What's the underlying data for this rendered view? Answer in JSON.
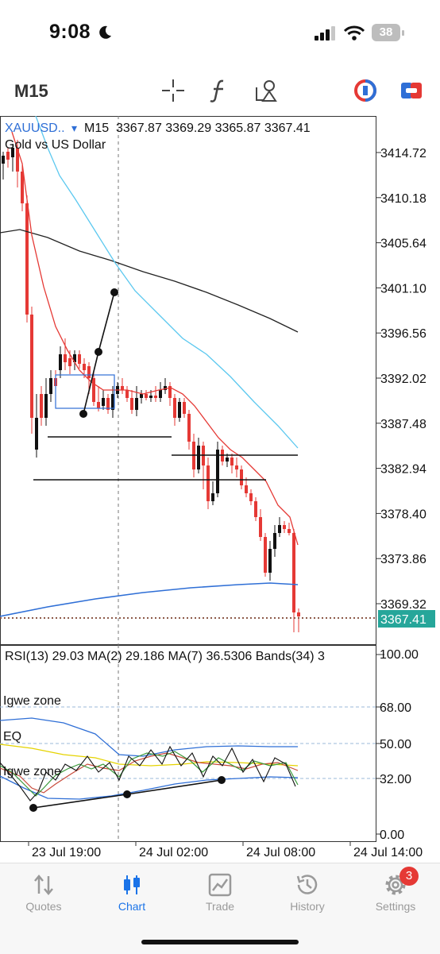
{
  "status_bar": {
    "time": "9:08",
    "battery": "38"
  },
  "toolbar": {
    "timeframe": "M15",
    "icons": [
      "crosshair-icon",
      "function-icon",
      "objects-icon",
      "color-scheme-icon",
      "trade-toggle-icon"
    ]
  },
  "chart": {
    "symbol": "XAUUSD..",
    "timeframe": "M15",
    "ohlc": "3367.87 3369.29 3365.87 3367.41",
    "description": "Gold vs US Dollar",
    "price_labels": [
      "3414.72",
      "3410.18",
      "3405.64",
      "3401.10",
      "3396.56",
      "3392.02",
      "3387.48",
      "3382.94",
      "3378.40",
      "3373.86",
      "3369.32"
    ],
    "current_price": "3367.41",
    "colors": {
      "bull": "#111111",
      "bear": "#e53935",
      "ma_red": "#e53935",
      "ma_cyan": "#5bc8ef",
      "ma_black": "#222222",
      "ma_blue": "#2f6fd6",
      "price_badge": "#26a69a"
    }
  },
  "rsi": {
    "header": "RSI(13) 29.03 MA(2) 29.186 MA(7) 36.5306 Bands(34) 3",
    "levels": [
      "100.00",
      "68.00",
      "50.00",
      "32.00",
      "0.00"
    ],
    "zone_upper": "Igwe zone",
    "eq_label": "EQ",
    "zone_lower": "Igwe zone"
  },
  "x_axis": {
    "labels": [
      "23 Jul 19:00",
      "24 Jul 02:00",
      "24 Jul 08:00",
      "24 Jul 14:00"
    ]
  },
  "tabs": [
    {
      "label": "Quotes",
      "icon": "quotes-icon",
      "active": false
    },
    {
      "label": "Chart",
      "icon": "chart-icon",
      "active": true
    },
    {
      "label": "Trade",
      "icon": "trade-icon",
      "active": false
    },
    {
      "label": "History",
      "icon": "history-icon",
      "active": false
    },
    {
      "label": "Settings",
      "icon": "settings-icon",
      "active": false,
      "badge": "3"
    }
  ]
}
